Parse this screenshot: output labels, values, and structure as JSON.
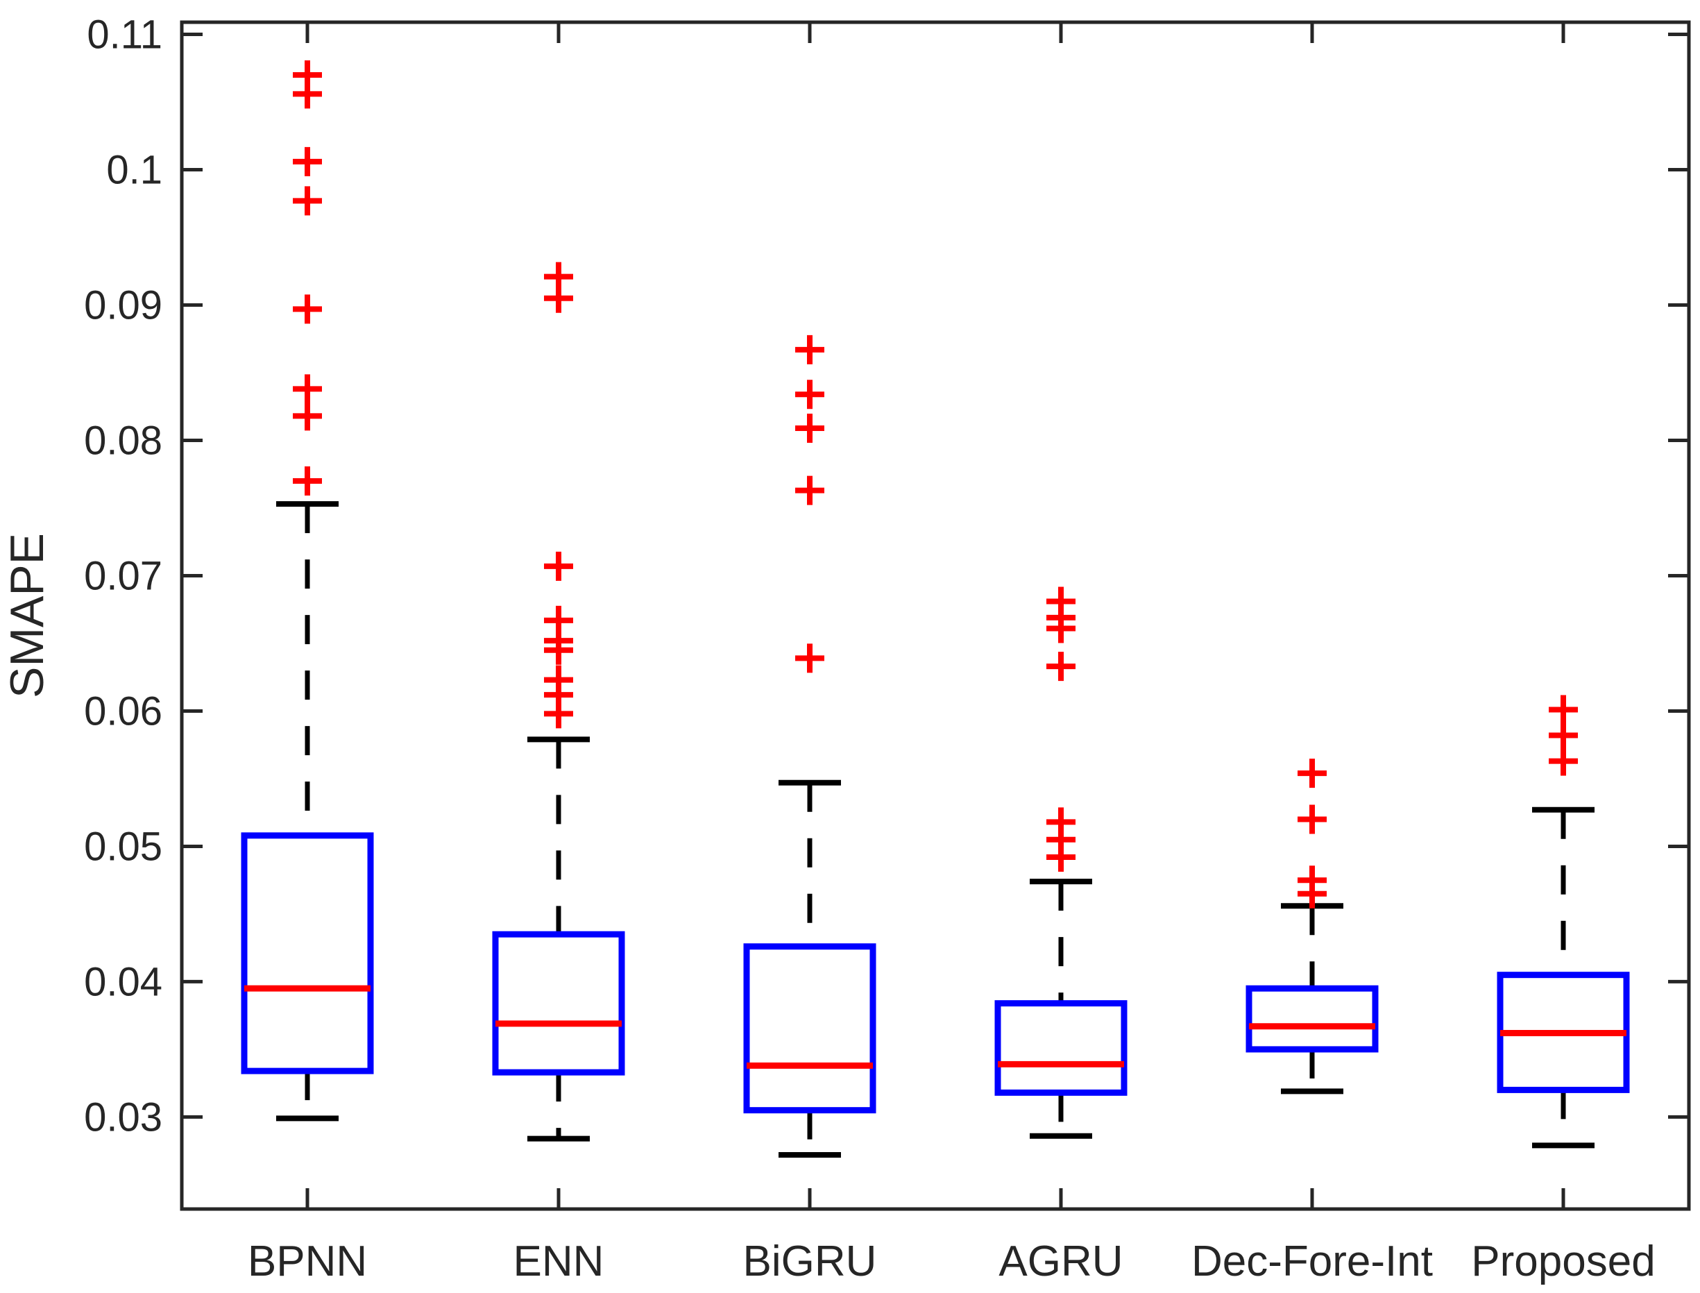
{
  "figure": {
    "background": "#ffffff"
  },
  "chart_data": {
    "type": "boxplot",
    "title": "",
    "xlabel": "",
    "ylabel": "SMAPE",
    "categories": [
      "BPNN",
      "ENN",
      "BiGRU",
      "AGRU",
      "Dec-Fore-Int",
      "Proposed"
    ],
    "ylim": [
      0.0232,
      0.1109
    ],
    "yticks": [
      0.03,
      0.04,
      0.05,
      0.06,
      0.07,
      0.08,
      0.09,
      0.1,
      0.11
    ],
    "ytick_labels": [
      "0.03",
      "0.04",
      "0.05",
      "0.06",
      "0.07",
      "0.08",
      "0.09",
      "0.1",
      "0.11"
    ],
    "grid": false,
    "legend": "none",
    "series": [
      {
        "name": "BPNN",
        "whisker_low": 0.0299,
        "q1": 0.0334,
        "median": 0.0395,
        "q3": 0.0508,
        "whisker_high": 0.0753,
        "outliers": [
          0.077,
          0.0818,
          0.0838,
          0.0897,
          0.0977,
          0.1006,
          0.1056,
          0.107
        ]
      },
      {
        "name": "ENN",
        "whisker_low": 0.0284,
        "q1": 0.0333,
        "median": 0.0369,
        "q3": 0.0435,
        "whisker_high": 0.0579,
        "outliers": [
          0.0598,
          0.0612,
          0.0623,
          0.0645,
          0.0652,
          0.0667,
          0.0707,
          0.0905,
          0.0921
        ]
      },
      {
        "name": "BiGRU",
        "whisker_low": 0.0272,
        "q1": 0.0305,
        "median": 0.0338,
        "q3": 0.0426,
        "whisker_high": 0.0547,
        "outliers": [
          0.0639,
          0.0763,
          0.0809,
          0.0834,
          0.0867
        ]
      },
      {
        "name": "AGRU",
        "whisker_low": 0.0286,
        "q1": 0.0318,
        "median": 0.0339,
        "q3": 0.0384,
        "whisker_high": 0.0474,
        "outliers": [
          0.0492,
          0.0505,
          0.0518,
          0.0633,
          0.0661,
          0.0669,
          0.0681
        ]
      },
      {
        "name": "Dec-Fore-Int",
        "whisker_low": 0.0319,
        "q1": 0.035,
        "median": 0.0367,
        "q3": 0.0395,
        "whisker_high": 0.0456,
        "outliers": [
          0.0465,
          0.0475,
          0.052,
          0.0554
        ]
      },
      {
        "name": "Proposed",
        "whisker_low": 0.0279,
        "q1": 0.032,
        "median": 0.0362,
        "q3": 0.0405,
        "whisker_high": 0.0527,
        "outliers": [
          0.0563,
          0.0582,
          0.0601
        ]
      }
    ],
    "colors": {
      "box": "#0000ff",
      "median": "#ff0000",
      "outlier": "#ff0000",
      "whisker": "#000000",
      "axis": "#262626",
      "background": "#ffffff"
    }
  }
}
